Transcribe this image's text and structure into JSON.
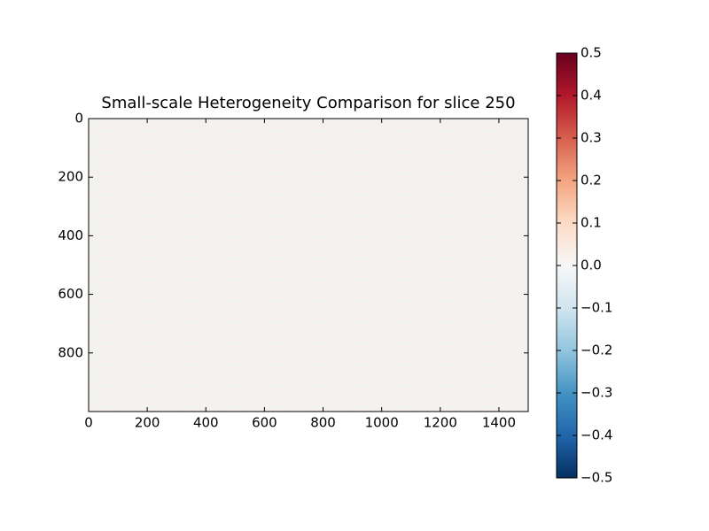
{
  "chart_data": {
    "type": "heatmap",
    "title": "Small-scale Heterogeneity Comparison for slice 250",
    "xlim": [
      0,
      1500
    ],
    "xticks": [
      0,
      200,
      400,
      600,
      800,
      1000,
      1200,
      1400
    ],
    "ylim": [
      1000,
      0
    ],
    "yticks": [
      0,
      200,
      400,
      600,
      800
    ],
    "colormap": "RdBu_r",
    "colors": [
      "#053061",
      "#2166ac",
      "#4393c3",
      "#92c5de",
      "#d1e5f0",
      "#f7f7f7",
      "#fddbc7",
      "#f4a582",
      "#d6604d",
      "#b2182b",
      "#67001f"
    ],
    "clim": [
      -0.5,
      0.5
    ],
    "cticks": [
      {
        "value": -0.5,
        "label": "−0.5"
      },
      {
        "value": -0.4,
        "label": "−0.4"
      },
      {
        "value": -0.3,
        "label": "−0.3"
      },
      {
        "value": -0.2,
        "label": "−0.2"
      },
      {
        "value": -0.1,
        "label": "−0.1"
      },
      {
        "value": 0,
        "label": "0.0"
      },
      0.1,
      0.2,
      0.3,
      0.4,
      0.5
    ]
  }
}
